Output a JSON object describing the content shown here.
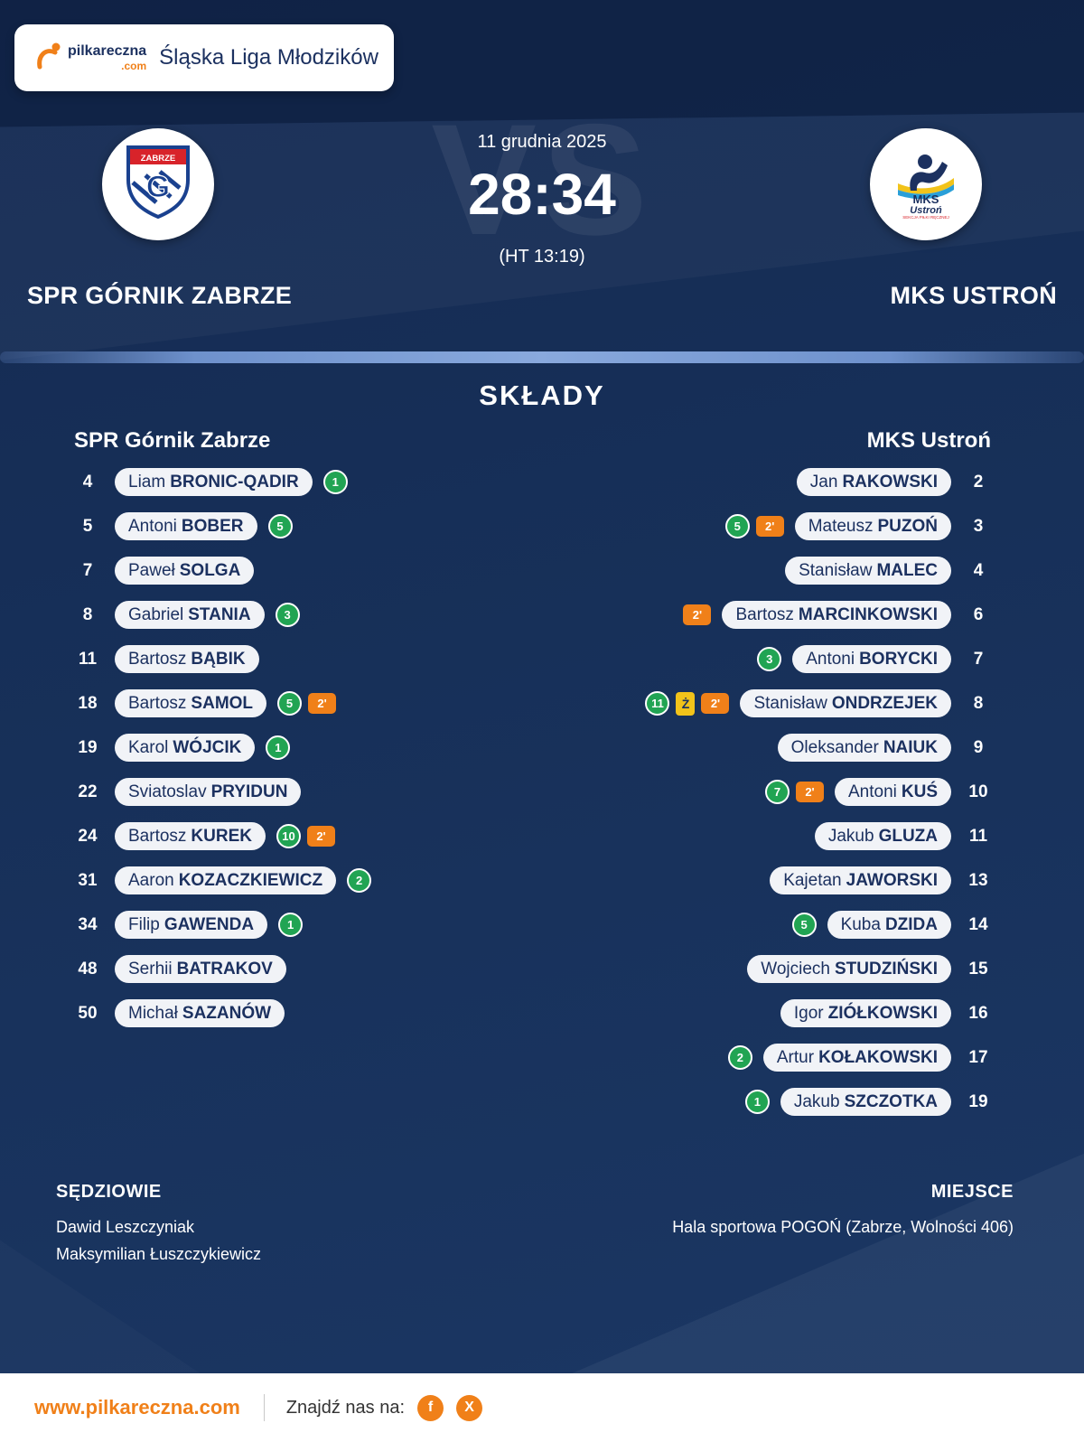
{
  "colors": {
    "background_navy": "#17305e",
    "accent_orange": "#f08019",
    "goal_green": "#21a453",
    "card_yellow": "#f2c31a",
    "pill_background": "#f1f3f7",
    "text_navy": "#1c3160",
    "white": "#ffffff"
  },
  "header": {
    "brand_name": "pilkareczna",
    "brand_suffix": ".com",
    "league": "Śląska Liga Młodzików"
  },
  "match": {
    "date": "11 grudnia 2025",
    "score": "28:34",
    "halftime": "(HT 13:19)",
    "vs_watermark": "VS",
    "home_team": "SPR GÓRNIK ZABRZE",
    "away_team": "MKS USTROŃ"
  },
  "lineups": {
    "title": "SKŁADY",
    "home_header": "SPR Górnik Zabrze",
    "away_header": "MKS Ustroń",
    "home_players": [
      {
        "number": "4",
        "first": "Liam",
        "last": "BRONIC-QADIR",
        "badges": [
          {
            "type": "goals",
            "value": "1"
          }
        ]
      },
      {
        "number": "5",
        "first": "Antoni",
        "last": "BOBER",
        "badges": [
          {
            "type": "goals",
            "value": "5"
          }
        ]
      },
      {
        "number": "7",
        "first": "Paweł",
        "last": "SOLGA",
        "badges": []
      },
      {
        "number": "8",
        "first": "Gabriel",
        "last": "STANIA",
        "badges": [
          {
            "type": "goals",
            "value": "3"
          }
        ]
      },
      {
        "number": "11",
        "first": "Bartosz",
        "last": "BĄBIK",
        "badges": []
      },
      {
        "number": "18",
        "first": "Bartosz",
        "last": "SAMOL",
        "badges": [
          {
            "type": "goals",
            "value": "5"
          },
          {
            "type": "suspension",
            "value": "2'"
          }
        ]
      },
      {
        "number": "19",
        "first": "Karol",
        "last": "WÓJCIK",
        "badges": [
          {
            "type": "goals",
            "value": "1"
          }
        ]
      },
      {
        "number": "22",
        "first": "Sviatoslav",
        "last": "PRYIDUN",
        "badges": []
      },
      {
        "number": "24",
        "first": "Bartosz",
        "last": "KUREK",
        "badges": [
          {
            "type": "goals",
            "value": "10"
          },
          {
            "type": "suspension",
            "value": "2'"
          }
        ]
      },
      {
        "number": "31",
        "first": "Aaron",
        "last": "KOZACZKIEWICZ",
        "badges": [
          {
            "type": "goals",
            "value": "2"
          }
        ]
      },
      {
        "number": "34",
        "first": "Filip",
        "last": "GAWENDA",
        "badges": [
          {
            "type": "goals",
            "value": "1"
          }
        ]
      },
      {
        "number": "48",
        "first": "Serhii",
        "last": "BATRAKOV",
        "badges": []
      },
      {
        "number": "50",
        "first": "Michał",
        "last": "SAZANÓW",
        "badges": []
      }
    ],
    "away_players": [
      {
        "number": "2",
        "first": "Jan",
        "last": "RAKOWSKI",
        "badges": []
      },
      {
        "number": "3",
        "first": "Mateusz",
        "last": "PUZOŃ",
        "badges": [
          {
            "type": "goals",
            "value": "5"
          },
          {
            "type": "suspension",
            "value": "2'"
          }
        ]
      },
      {
        "number": "4",
        "first": "Stanisław",
        "last": "MALEC",
        "badges": []
      },
      {
        "number": "6",
        "first": "Bartosz",
        "last": "MARCINKOWSKI",
        "badges": [
          {
            "type": "suspension",
            "value": "2'"
          }
        ]
      },
      {
        "number": "7",
        "first": "Antoni",
        "last": "BORYCKI",
        "badges": [
          {
            "type": "goals",
            "value": "3"
          }
        ]
      },
      {
        "number": "8",
        "first": "Stanisław",
        "last": "ONDRZEJEK",
        "badges": [
          {
            "type": "goals",
            "value": "11"
          },
          {
            "type": "yellow-card",
            "value": "Ż"
          },
          {
            "type": "suspension",
            "value": "2'"
          }
        ]
      },
      {
        "number": "9",
        "first": "Oleksander",
        "last": "NAIUK",
        "badges": []
      },
      {
        "number": "10",
        "first": "Antoni",
        "last": "KUŚ",
        "badges": [
          {
            "type": "goals",
            "value": "7"
          },
          {
            "type": "suspension",
            "value": "2'"
          }
        ]
      },
      {
        "number": "11",
        "first": "Jakub",
        "last": "GLUZA",
        "badges": []
      },
      {
        "number": "13",
        "first": "Kajetan",
        "last": "JAWORSKI",
        "badges": []
      },
      {
        "number": "14",
        "first": "Kuba",
        "last": "DZIDA",
        "badges": [
          {
            "type": "goals",
            "value": "5"
          }
        ]
      },
      {
        "number": "15",
        "first": "Wojciech",
        "last": "STUDZIŃSKI",
        "badges": []
      },
      {
        "number": "16",
        "first": "Igor",
        "last": "ZIÓŁKOWSKI",
        "badges": []
      },
      {
        "number": "17",
        "first": "Artur",
        "last": "KOŁAKOWSKI",
        "badges": [
          {
            "type": "goals",
            "value": "2"
          }
        ]
      },
      {
        "number": "19",
        "first": "Jakub",
        "last": "SZCZOTKA",
        "badges": [
          {
            "type": "goals",
            "value": "1"
          }
        ]
      }
    ]
  },
  "officials": {
    "referees_label": "SĘDZIOWIE",
    "referees": [
      "Dawid Leszczyniak",
      "Maksymilian Łuszczykiewicz"
    ],
    "venue_label": "MIEJSCE",
    "venue": "Hala sportowa POGOŃ (Zabrze, Wolności 406)"
  },
  "footer": {
    "url": "www.pilkareczna.com",
    "social_label": "Znajdź nas na:",
    "social": [
      {
        "name": "facebook",
        "glyph": "f"
      },
      {
        "name": "x",
        "glyph": "X"
      }
    ]
  }
}
